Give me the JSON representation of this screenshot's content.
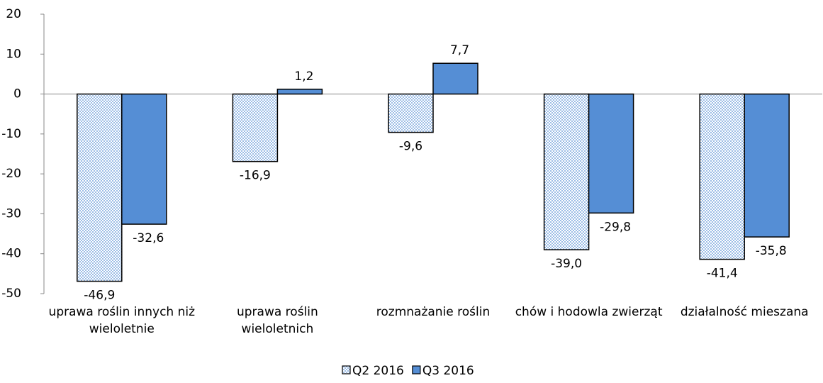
{
  "chart_data": {
    "type": "bar",
    "categories": [
      "uprawa roślin innych niż wieloletnie",
      "uprawa roślin wieloletnich",
      "rozmnażanie roślin",
      "chów i hodowla zwierząt",
      "działalność mieszana"
    ],
    "series": [
      {
        "name": "Q2 2016",
        "color": "#c5d9f1",
        "values": [
          -46.9,
          -16.9,
          -9.6,
          -39.0,
          -41.4
        ],
        "value_labels": [
          "-46,9",
          "-16,9",
          "-9,6",
          "-39,0",
          "-41,4"
        ]
      },
      {
        "name": "Q3 2016",
        "color": "#558ed5",
        "values": [
          -32.6,
          1.2,
          7.7,
          -29.8,
          -35.8
        ],
        "value_labels": [
          "-32,6",
          "1,2",
          "7,7",
          "-29,8",
          "-35,8"
        ]
      }
    ],
    "ylim": [
      -50,
      20
    ],
    "yticks": [
      -50,
      -40,
      -30,
      -20,
      -10,
      0,
      10,
      20
    ],
    "grid": false,
    "legend": "bottom"
  }
}
